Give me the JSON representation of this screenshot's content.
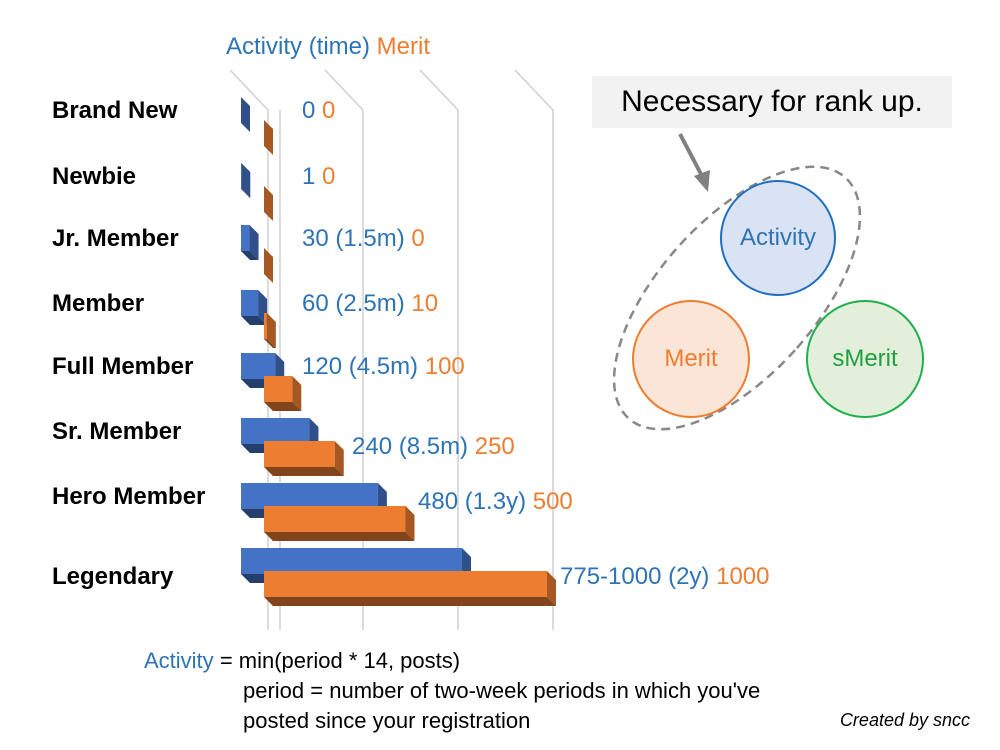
{
  "chart_data": {
    "type": "bar",
    "orientation": "horizontal",
    "categories": [
      "Brand New",
      "Newbie",
      "Jr. Member",
      "Member",
      "Full Member",
      "Sr. Member",
      "Hero Member",
      "Legendary"
    ],
    "series": [
      {
        "name": "Activity (time)",
        "color": "#4472c4",
        "values": [
          0,
          1,
          30,
          60,
          120,
          240,
          480,
          775
        ]
      },
      {
        "name": "Merit",
        "color": "#ed7d31",
        "values": [
          0,
          0,
          0,
          10,
          100,
          250,
          500,
          1000
        ]
      }
    ],
    "value_labels": [
      {
        "activity": "0",
        "merit": "0"
      },
      {
        "activity": "1",
        "merit": "0"
      },
      {
        "activity": "30 (1.5m)",
        "merit": "0"
      },
      {
        "activity": "60 (2.5m)",
        "merit": "10"
      },
      {
        "activity": "120 (4.5m)",
        "merit": "100"
      },
      {
        "activity": "240 (8.5m)",
        "merit": "250"
      },
      {
        "activity": "480 (1.3y)",
        "merit": "500"
      },
      {
        "activity": "775-1000 (2y)",
        "merit": "1000"
      }
    ],
    "legend": {
      "activity": "Activity (time)",
      "merit": "Merit",
      "placement": "top"
    },
    "grid": true
  },
  "callout": "Necessary for rank up.",
  "circles": [
    {
      "label": "Activity",
      "border": "#1f6fbf",
      "fill": "#dae3f3",
      "text": "#2e74b5"
    },
    {
      "label": "Merit",
      "border": "#ed7d31",
      "fill": "#fbe5d6",
      "text": "#ed7d31"
    },
    {
      "label": "sMerit",
      "border": "#20b04b",
      "fill": "#e2efda",
      "text": "#20a040"
    }
  ],
  "formula": {
    "term": "Activity",
    "line1": "= min(period * 14, posts)",
    "line2": "period = number of two-week periods in which you've",
    "line3": "posted since your registration"
  },
  "credit": "Created by sncc"
}
